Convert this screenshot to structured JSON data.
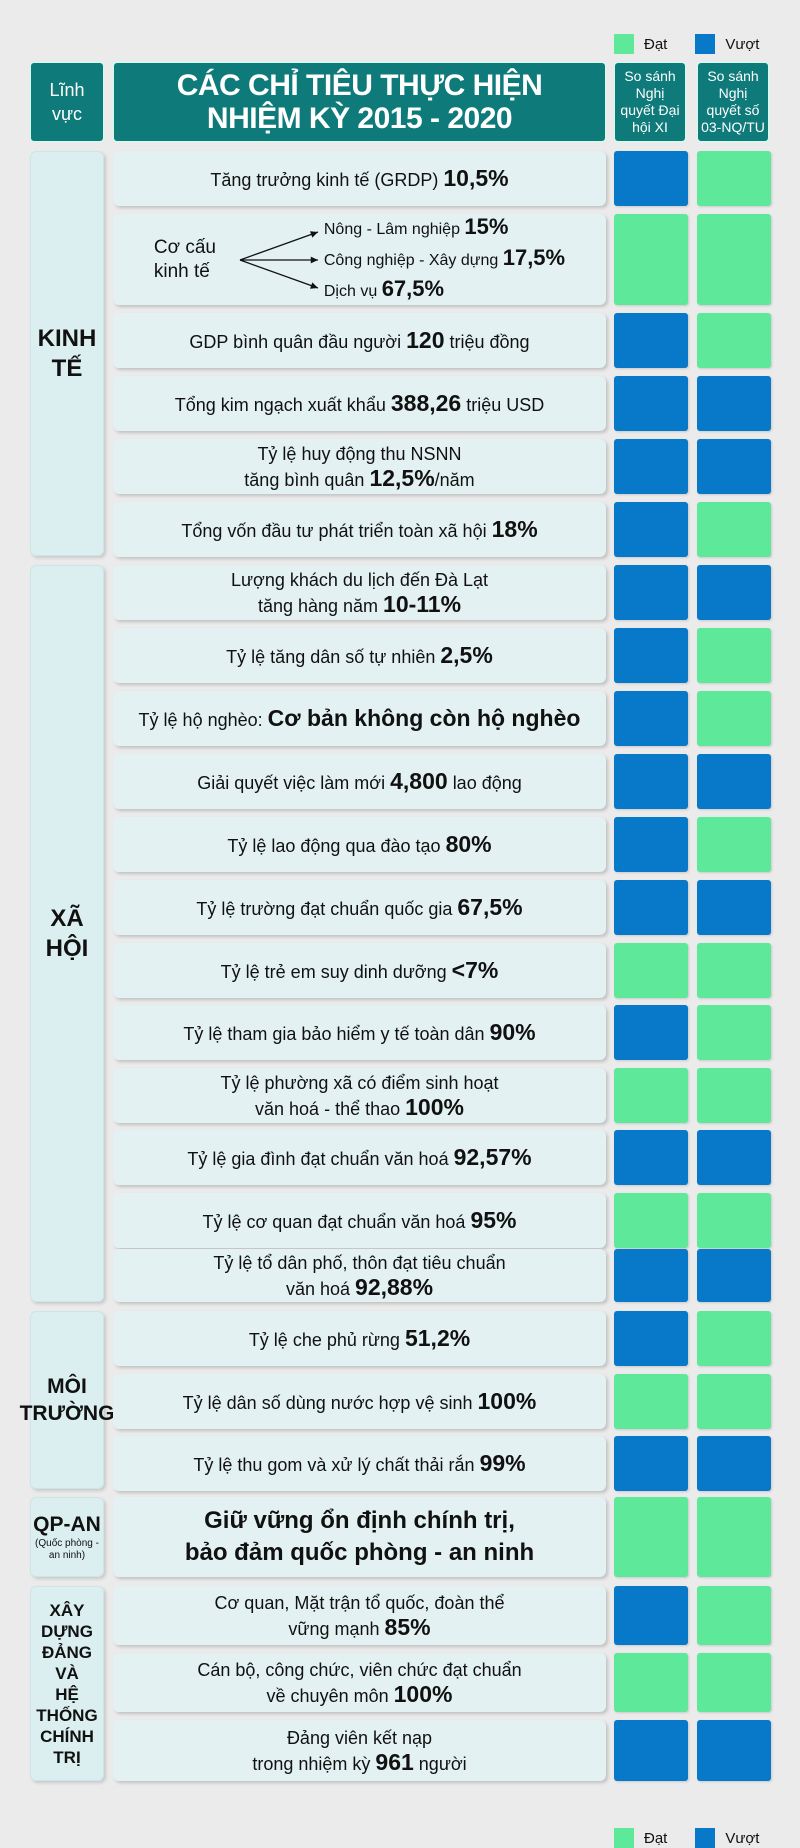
{
  "legend": {
    "dat": "Đạt",
    "vuot": "Vượt"
  },
  "colors": {
    "dat": "#5ee89a",
    "vuot": "#0878c8"
  },
  "header": {
    "field": "Lĩnh vực",
    "title_line1": "CÁC CHỈ TIÊU THỰC HIỆN",
    "title_line2": "NHIỆM KỲ 2015 - 2020",
    "cmp1": "So sánh Nghị quyết Đại hội XI",
    "cmp2": "So sánh Nghị quyết số 03-NQ/TU"
  },
  "categories": [
    {
      "line1": "KINH",
      "line2": "TẾ"
    },
    {
      "line1": "XÃ",
      "line2": "HỘI"
    },
    {
      "line1": "MÔI",
      "line2": "TRƯỜNG"
    },
    {
      "line1": "QP-AN",
      "line2": "(Quốc phòng - an ninh)"
    },
    {
      "line1": "XÂY DỰNG",
      "line2": "ĐẢNG",
      "line3": "VÀ",
      "line4": "HỆ THỐNG",
      "line5": "CHÍNH TRỊ"
    }
  ],
  "rows": [
    {
      "text": "Tăng trưởng kinh tế (GRDP)",
      "value": "10,5%",
      "c1": "vuot",
      "c2": "dat"
    },
    {
      "label": "Cơ cấu kinh tế",
      "items": [
        {
          "text": "Nông - Lâm nghiệp",
          "value": "15%"
        },
        {
          "text": "Công nghiệp - Xây dựng",
          "value": "17,5%"
        },
        {
          "text": "Dịch vụ",
          "value": "67,5%"
        }
      ],
      "c1": "dat",
      "c2": "dat"
    },
    {
      "text": "GDP bình quân đầu người",
      "value": "120",
      "suffix": "triệu đồng",
      "c1": "vuot",
      "c2": "dat"
    },
    {
      "text": "Tổng kim ngạch xuất khẩu",
      "value": "388,26",
      "suffix": "triệu USD",
      "c1": "vuot",
      "c2": "vuot"
    },
    {
      "line1": "Tỷ lệ huy động thu NSNN",
      "text": "tăng bình quân",
      "value": "12,5%",
      "suffix": "/năm",
      "c1": "vuot",
      "c2": "vuot"
    },
    {
      "text": "Tổng vốn đầu tư phát triển toàn xã hội",
      "value": "18%",
      "c1": "vuot",
      "c2": "dat"
    },
    {
      "line1": "Lượng khách du lịch đến Đà Lạt",
      "text": "tăng hàng năm",
      "value": "10-11%",
      "c1": "vuot",
      "c2": "vuot"
    },
    {
      "text": "Tỷ lệ tăng dân số tự nhiên",
      "value": "2,5%",
      "c1": "vuot",
      "c2": "dat"
    },
    {
      "text": "Tỷ lệ hộ nghèo:",
      "value": "Cơ bản không còn hộ nghèo",
      "c1": "vuot",
      "c2": "dat"
    },
    {
      "text": "Giải quyết việc làm mới",
      "value": "4,800",
      "suffix": "lao động",
      "c1": "vuot",
      "c2": "vuot"
    },
    {
      "text": "Tỷ lệ lao động qua đào tạo",
      "value": "80%",
      "c1": "vuot",
      "c2": "dat"
    },
    {
      "text": "Tỷ lệ trường đạt chuẩn quốc gia",
      "value": "67,5%",
      "c1": "vuot",
      "c2": "vuot"
    },
    {
      "text": "Tỷ lệ trẻ em suy dinh dưỡng",
      "value": "<7%",
      "c1": "dat",
      "c2": "dat"
    },
    {
      "text": "Tỷ lệ tham gia bảo hiểm y tế toàn dân",
      "value": "90%",
      "c1": "vuot",
      "c2": "dat"
    },
    {
      "line1": "Tỷ lệ phường xã có điểm sinh hoạt",
      "text": "văn hoá - thể thao",
      "value": "100%",
      "c1": "dat",
      "c2": "dat"
    },
    {
      "text": "Tỷ lệ gia đình đạt chuẩn văn hoá",
      "value": "92,57%",
      "c1": "vuot",
      "c2": "vuot"
    },
    {
      "text": "Tỷ lệ cơ quan đạt chuẩn văn hoá",
      "value": "95%",
      "c1": "dat",
      "c2": "dat"
    },
    {
      "line1": "Tỷ lệ tổ dân phố, thôn đạt tiêu chuẩn",
      "text": "văn hoá",
      "value": "92,88%",
      "c1": "vuot",
      "c2": "vuot"
    },
    {
      "text": "Tỷ lệ che phủ rừng",
      "value": "51,2%",
      "c1": "vuot",
      "c2": "dat"
    },
    {
      "text": "Tỷ lệ dân số dùng nước hợp vệ sinh",
      "value": "100%",
      "c1": "dat",
      "c2": "dat"
    },
    {
      "text": "Tỷ lệ thu gom và xử lý chất thải rắn",
      "value": "99%",
      "c1": "vuot",
      "c2": "vuot"
    },
    {
      "big1": "Giữ vững ổn định chính trị,",
      "big2": "bảo đảm quốc phòng - an ninh",
      "c1": "dat",
      "c2": "dat"
    },
    {
      "line1": "Cơ quan, Mặt trận tổ quốc, đoàn thể",
      "text": "vững mạnh",
      "value": "85%",
      "c1": "vuot",
      "c2": "dat"
    },
    {
      "line1": "Cán bộ, công chức, viên chức đạt chuẩn",
      "text": "về chuyên môn",
      "value": "100%",
      "c1": "dat",
      "c2": "dat"
    },
    {
      "line1": "Đảng viên kết nạp",
      "text": "trong nhiệm kỳ",
      "value": "961",
      "suffix": "người",
      "c1": "vuot",
      "c2": "vuot"
    }
  ]
}
